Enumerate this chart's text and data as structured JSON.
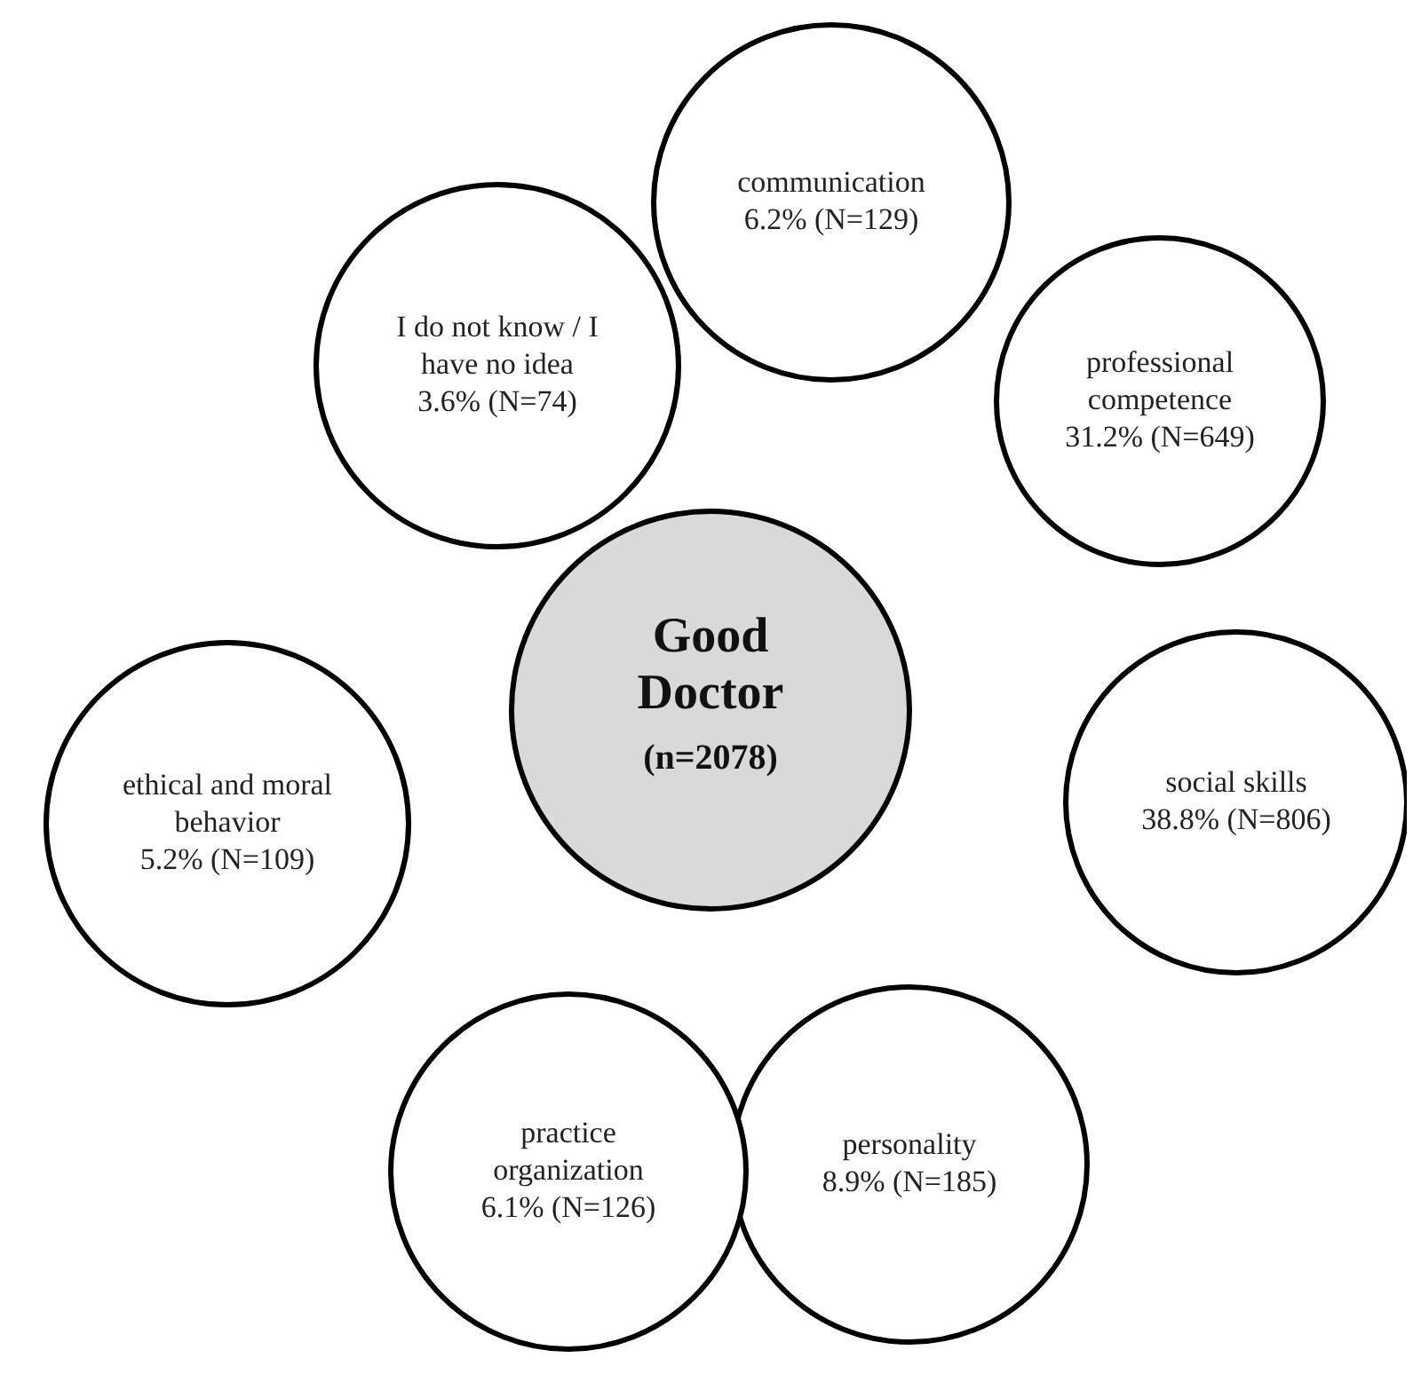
{
  "chart_data": {
    "type": "other",
    "title": "Good Doctor",
    "subtitle": "(n=2078)",
    "categories": [
      "communication",
      "professional competence",
      "social skills",
      "personality",
      "practice organization",
      "ethical and moral behavior",
      "I do not know / I have no idea"
    ],
    "values": [
      6.2,
      31.2,
      38.8,
      8.9,
      6.1,
      5.2,
      3.6
    ],
    "value_labels": [
      "6.2% (N=129)",
      "31.2% (N=649)",
      "38.8% (N=806)",
      "8.9% (N=185)",
      "6.1% (N=126)",
      "5.2% (N=109)",
      "3.6% (N=74)"
    ],
    "colors": [
      "#ffffff",
      "#ffffff",
      "#ffffff",
      "#ffffff",
      "#ffffff",
      "#ffffff",
      "#ffffff"
    ]
  }
}
